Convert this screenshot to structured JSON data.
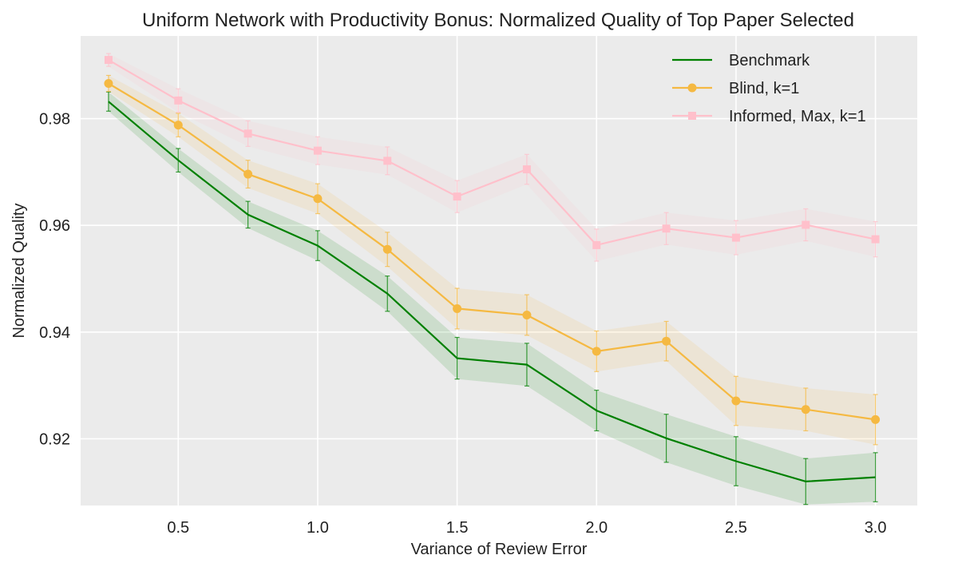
{
  "chart_data": {
    "type": "line",
    "title": "Uniform Network with Productivity Bonus: Normalized Quality of Top Paper Selected",
    "xlabel": "Variance of Review Error",
    "ylabel": "Normalized Quality",
    "xlim": [
      0.15,
      3.15
    ],
    "ylim": [
      0.9075,
      0.9955
    ],
    "xticks": [
      0.5,
      1.0,
      1.5,
      2.0,
      2.5,
      3.0
    ],
    "xtick_labels": [
      "0.5",
      "1.0",
      "1.5",
      "2.0",
      "2.5",
      "3.0"
    ],
    "yticks": [
      0.92,
      0.94,
      0.96,
      0.98
    ],
    "ytick_labels": [
      "0.92",
      "0.94",
      "0.96",
      "0.98"
    ],
    "grid": true,
    "legend_position": "top-right",
    "x": [
      0.25,
      0.5,
      0.75,
      1.0,
      1.25,
      1.5,
      1.75,
      2.0,
      2.25,
      2.5,
      2.75,
      3.0
    ],
    "series": [
      {
        "name": "Benchmark",
        "color": "#008000",
        "marker": "none",
        "values": [
          0.9832,
          0.9722,
          0.962,
          0.9562,
          0.9472,
          0.9351,
          0.9339,
          0.9253,
          0.9201,
          0.9158,
          0.912,
          0.9128
        ],
        "errors": [
          0.0018,
          0.0022,
          0.0025,
          0.0028,
          0.0033,
          0.0039,
          0.004,
          0.0038,
          0.0045,
          0.0046,
          0.0043,
          0.0046
        ]
      },
      {
        "name": "Blind, k=1",
        "color": "#f5b942",
        "marker": "circle",
        "values": [
          0.9866,
          0.9788,
          0.9696,
          0.965,
          0.9555,
          0.9444,
          0.9432,
          0.9364,
          0.9383,
          0.9271,
          0.9255,
          0.9236
        ],
        "errors": [
          0.0015,
          0.0022,
          0.0026,
          0.0028,
          0.0032,
          0.0038,
          0.0038,
          0.0038,
          0.0037,
          0.0046,
          0.004,
          0.0047
        ]
      },
      {
        "name": "Informed, Max, k=1",
        "color": "#ffc0cb",
        "marker": "square",
        "values": [
          0.991,
          0.9834,
          0.9772,
          0.974,
          0.9721,
          0.9654,
          0.9705,
          0.9563,
          0.9594,
          0.9577,
          0.9601,
          0.9574
        ],
        "errors": [
          0.0012,
          0.0022,
          0.0024,
          0.0026,
          0.0026,
          0.003,
          0.0028,
          0.003,
          0.003,
          0.0032,
          0.003,
          0.0033
        ]
      }
    ]
  }
}
